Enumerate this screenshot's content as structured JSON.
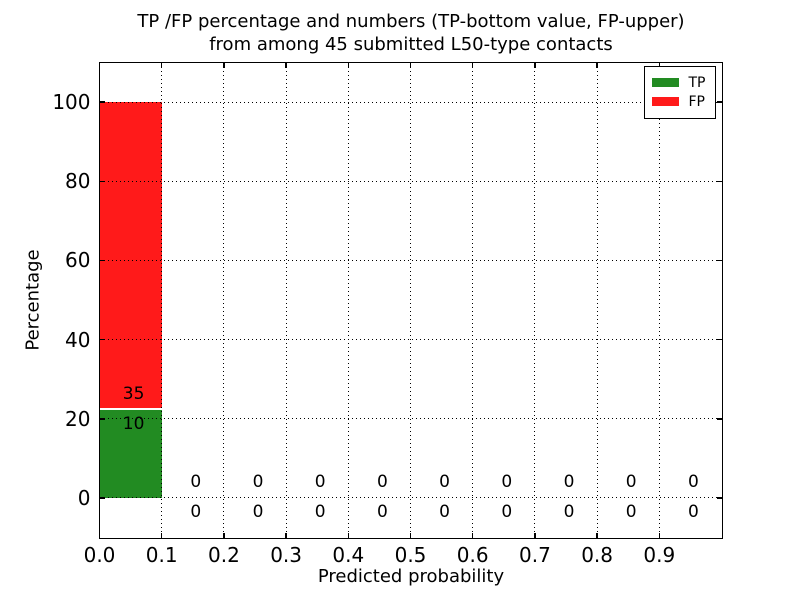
{
  "title": {
    "line1": "TP /FP percentage and numbers (TP-bottom value, FP-upper)",
    "line2": "from among 45 submitted L50-type contacts"
  },
  "chart_data": {
    "type": "bar",
    "stacked": true,
    "title": "TP /FP percentage and numbers (TP-bottom value, FP-upper)\nfrom among 45 submitted L50-type contacts",
    "xlabel": "Predicted probability",
    "ylabel": "Percentage",
    "total_submitted": 45,
    "xlim": [
      0.0,
      1.0
    ],
    "ylim": [
      -10,
      110
    ],
    "grid": "dotted",
    "legend_position": "upper right",
    "xticks": [
      {
        "v": 0.0,
        "label": "0.0"
      },
      {
        "v": 0.1,
        "label": "0.1"
      },
      {
        "v": 0.2,
        "label": "0.2"
      },
      {
        "v": 0.3,
        "label": "0.3"
      },
      {
        "v": 0.4,
        "label": "0.4"
      },
      {
        "v": 0.5,
        "label": "0.5"
      },
      {
        "v": 0.6,
        "label": "0.6"
      },
      {
        "v": 0.7,
        "label": "0.7"
      },
      {
        "v": 0.8,
        "label": "0.8"
      },
      {
        "v": 0.9,
        "label": "0.9"
      }
    ],
    "yticks": [
      {
        "v": 0,
        "label": "0"
      },
      {
        "v": 20,
        "label": "20"
      },
      {
        "v": 40,
        "label": "40"
      },
      {
        "v": 60,
        "label": "60"
      },
      {
        "v": 80,
        "label": "80"
      },
      {
        "v": 100,
        "label": "100"
      }
    ],
    "bins": [
      {
        "x0": 0.0,
        "x1": 0.1,
        "tp_count": 10,
        "fp_count": 35,
        "tp_pct": 22.22,
        "fp_pct": 77.78
      },
      {
        "x0": 0.1,
        "x1": 0.2,
        "tp_count": 0,
        "fp_count": 0,
        "tp_pct": 0,
        "fp_pct": 0
      },
      {
        "x0": 0.2,
        "x1": 0.3,
        "tp_count": 0,
        "fp_count": 0,
        "tp_pct": 0,
        "fp_pct": 0
      },
      {
        "x0": 0.3,
        "x1": 0.4,
        "tp_count": 0,
        "fp_count": 0,
        "tp_pct": 0,
        "fp_pct": 0
      },
      {
        "x0": 0.4,
        "x1": 0.5,
        "tp_count": 0,
        "fp_count": 0,
        "tp_pct": 0,
        "fp_pct": 0
      },
      {
        "x0": 0.5,
        "x1": 0.6,
        "tp_count": 0,
        "fp_count": 0,
        "tp_pct": 0,
        "fp_pct": 0
      },
      {
        "x0": 0.6,
        "x1": 0.7,
        "tp_count": 0,
        "fp_count": 0,
        "tp_pct": 0,
        "fp_pct": 0
      },
      {
        "x0": 0.7,
        "x1": 0.8,
        "tp_count": 0,
        "fp_count": 0,
        "tp_pct": 0,
        "fp_pct": 0
      },
      {
        "x0": 0.8,
        "x1": 0.9,
        "tp_count": 0,
        "fp_count": 0,
        "tp_pct": 0,
        "fp_pct": 0
      },
      {
        "x0": 0.9,
        "x1": 1.0,
        "tp_count": 0,
        "fp_count": 0,
        "tp_pct": 0,
        "fp_pct": 0
      }
    ],
    "legend": [
      {
        "label": "TP",
        "color": "#228b22"
      },
      {
        "label": "FP",
        "color": "#ff1a1a"
      }
    ]
  },
  "colors": {
    "tp": "#228b22",
    "fp": "#ff1a1a",
    "spine": "#000000",
    "background": "#ffffff",
    "segment_gap": "#ffffff"
  }
}
